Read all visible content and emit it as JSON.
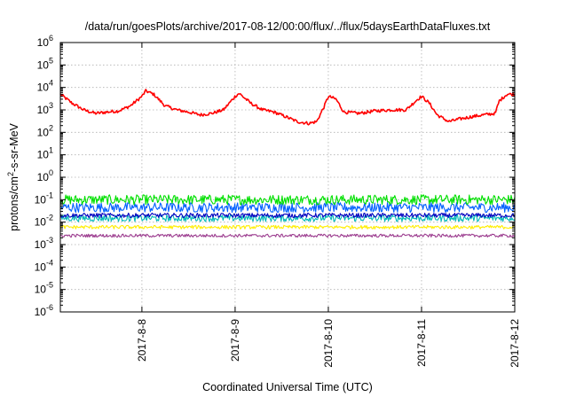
{
  "chart_data": {
    "type": "line",
    "title": "/data/run/goesPlots/archive/2017-08-12/00:00/flux/../flux/5daysEarthDataFluxes.txt",
    "xlabel": "Coordinated Universal Time (UTC)",
    "ylabel": {
      "prefix": "protons/cm",
      "sup": "2",
      "suffix": "-s-sr-MeV"
    },
    "y_scale": "log",
    "ylim": [
      1e-06,
      1000000.0
    ],
    "y_ticks": [
      {
        "base": "10",
        "exp": "-6",
        "value": 1e-06
      },
      {
        "base": "10",
        "exp": "-5",
        "value": 1e-05
      },
      {
        "base": "10",
        "exp": "-4",
        "value": 0.0001
      },
      {
        "base": "10",
        "exp": "-3",
        "value": 0.001
      },
      {
        "base": "10",
        "exp": "-2",
        "value": 0.01
      },
      {
        "base": "10",
        "exp": "-1",
        "value": 0.1
      },
      {
        "base": "10",
        "exp": "0",
        "value": 1
      },
      {
        "base": "10",
        "exp": "1",
        "value": 10
      },
      {
        "base": "10",
        "exp": "2",
        "value": 100
      },
      {
        "base": "10",
        "exp": "3",
        "value": 1000
      },
      {
        "base": "10",
        "exp": "4",
        "value": 10000
      },
      {
        "base": "10",
        "exp": "5",
        "value": 100000
      },
      {
        "base": "10",
        "exp": "6",
        "value": 1000000
      }
    ],
    "xlim": [
      "2017-08-07 03:00",
      "2017-08-12 00:00"
    ],
    "x_ticks": [
      {
        "label": "2017-8-8",
        "value": "2017-08-08 00:00"
      },
      {
        "label": "2017-8-9",
        "value": "2017-08-09 00:00"
      },
      {
        "label": "2017-8-10",
        "value": "2017-08-10 00:00"
      },
      {
        "label": "2017-8-11",
        "value": "2017-08-11 00:00"
      },
      {
        "label": "2017-8-12",
        "value": "2017-08-12 00:00"
      }
    ],
    "grid": true,
    "series": [
      {
        "color": "#ff0000",
        "noise": 0.07,
        "points": [
          [
            "2017-08-07 03:00",
            5000
          ],
          [
            "2017-08-07 06:00",
            2000
          ],
          [
            "2017-08-07 09:00",
            1000
          ],
          [
            "2017-08-07 12:00",
            700
          ],
          [
            "2017-08-07 15:00",
            800
          ],
          [
            "2017-08-07 18:00",
            900
          ],
          [
            "2017-08-07 21:00",
            1500
          ],
          [
            "2017-08-08 00:00",
            4000
          ],
          [
            "2017-08-08 01:00",
            7000
          ],
          [
            "2017-08-08 03:00",
            5000
          ],
          [
            "2017-08-08 06:00",
            1500
          ],
          [
            "2017-08-08 09:00",
            1000
          ],
          [
            "2017-08-08 12:00",
            800
          ],
          [
            "2017-08-08 15:00",
            600
          ],
          [
            "2017-08-08 18:00",
            700
          ],
          [
            "2017-08-08 21:00",
            1000
          ],
          [
            "2017-08-09 00:00",
            4000
          ],
          [
            "2017-08-09 01:00",
            5500
          ],
          [
            "2017-08-09 04:00",
            2000
          ],
          [
            "2017-08-09 07:00",
            1000
          ],
          [
            "2017-08-09 10:00",
            800
          ],
          [
            "2017-08-09 13:00",
            500
          ],
          [
            "2017-08-09 16:00",
            300
          ],
          [
            "2017-08-09 19:00",
            250
          ],
          [
            "2017-08-09 21:00",
            300
          ],
          [
            "2017-08-09 23:00",
            1500
          ],
          [
            "2017-08-10 00:00",
            4000
          ],
          [
            "2017-08-10 02:00",
            3000
          ],
          [
            "2017-08-10 04:00",
            800
          ],
          [
            "2017-08-10 08:00",
            700
          ],
          [
            "2017-08-10 12:00",
            900
          ],
          [
            "2017-08-10 16:00",
            1000
          ],
          [
            "2017-08-10 20:00",
            1000
          ],
          [
            "2017-08-10 23:00",
            3000
          ],
          [
            "2017-08-11 00:00",
            4000
          ],
          [
            "2017-08-11 02:00",
            2000
          ],
          [
            "2017-08-11 04:00",
            600
          ],
          [
            "2017-08-11 07:00",
            300
          ],
          [
            "2017-08-11 10:00",
            400
          ],
          [
            "2017-08-11 13:00",
            500
          ],
          [
            "2017-08-11 16:00",
            600
          ],
          [
            "2017-08-11 19:00",
            700
          ],
          [
            "2017-08-11 20:00",
            2500
          ],
          [
            "2017-08-11 22:00",
            5000
          ],
          [
            "2017-08-12 00:00",
            5000
          ]
        ]
      },
      {
        "color": "#00e000",
        "noise": 0.22,
        "points": [
          [
            "2017-08-07 03:00",
            0.1
          ],
          [
            "2017-08-12 00:00",
            0.1
          ]
        ]
      },
      {
        "color": "#0060ff",
        "noise": 0.22,
        "points": [
          [
            "2017-08-07 03:00",
            0.045
          ],
          [
            "2017-08-12 00:00",
            0.045
          ]
        ]
      },
      {
        "color": "#00b8b8",
        "noise": 0.15,
        "points": [
          [
            "2017-08-07 03:00",
            0.015
          ],
          [
            "2017-08-12 00:00",
            0.015
          ]
        ]
      },
      {
        "color": "#0000c0",
        "noise": 0.1,
        "points": [
          [
            "2017-08-07 03:00",
            0.02
          ],
          [
            "2017-08-12 00:00",
            0.02
          ]
        ]
      },
      {
        "color": "#ffee00",
        "noise": 0.08,
        "points": [
          [
            "2017-08-07 03:00",
            0.006
          ],
          [
            "2017-08-12 00:00",
            0.006
          ]
        ]
      },
      {
        "color": "#9b3b8e",
        "noise": 0.07,
        "points": [
          [
            "2017-08-07 03:00",
            0.0025
          ],
          [
            "2017-08-12 00:00",
            0.0025
          ]
        ]
      }
    ]
  }
}
